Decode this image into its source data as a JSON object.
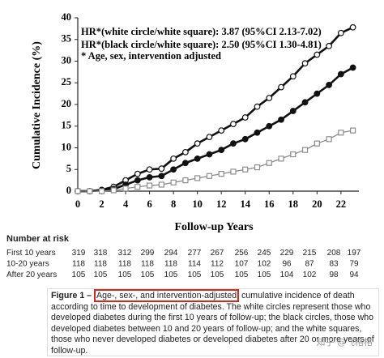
{
  "chart_data": {
    "type": "line",
    "annotations": [
      "HR*(white circle/white square): 3.87 (95%CI 2.13-7.02)",
      "HR*(black circle/white square):  2.50 (95%CI 1.30-4.81)",
      "* Age, sex, intervention adjusted"
    ],
    "x_label": "Follow-up Years",
    "y_label": "Cumulative Incidence (%)",
    "x": [
      0,
      1,
      2,
      3,
      4,
      5,
      6,
      7,
      8,
      9,
      10,
      11,
      12,
      13,
      14,
      15,
      16,
      17,
      18,
      19,
      20,
      21,
      22,
      23
    ],
    "series": [
      {
        "color": "#111111",
        "marker": "circle-open",
        "values": [
          0,
          0,
          0.3,
          1,
          2.5,
          4,
          5,
          5.2,
          7.5,
          9,
          11,
          12.5,
          14,
          15.5,
          17,
          19.5,
          21.5,
          24,
          26.5,
          29.5,
          31.5,
          33.5,
          36.5,
          37.8
        ]
      },
      {
        "color": "#111111",
        "marker": "circle-filled",
        "values": [
          0,
          0,
          0.2,
          0.5,
          1.5,
          2.5,
          3.2,
          3.5,
          5,
          6.5,
          7.5,
          8.5,
          9.5,
          11,
          12,
          13.5,
          15,
          16.5,
          18.5,
          20.5,
          22.5,
          24.5,
          27,
          28.5
        ]
      },
      {
        "color": "#8c8c8c",
        "marker": "square-open",
        "values": [
          0,
          0,
          0,
          0.2,
          0.6,
          1,
          1.3,
          1.5,
          2,
          2.5,
          3,
          3.5,
          4,
          4.5,
          5,
          5.5,
          6.5,
          7.5,
          8.5,
          9.5,
          11,
          12,
          13.5,
          14
        ]
      }
    ],
    "xlim": [
      0,
      23.5
    ],
    "ylim": [
      0,
      40
    ],
    "xticks": [
      0,
      2,
      4,
      6,
      8,
      10,
      12,
      14,
      16,
      18,
      20,
      22
    ],
    "yticks": [
      0,
      5,
      10,
      15,
      20,
      25,
      30,
      35,
      40
    ]
  },
  "risk_table": {
    "title": "Number at risk",
    "rows": [
      {
        "label": "First  10 years",
        "values": [
          319,
          318,
          312,
          299,
          294,
          277,
          267,
          256,
          245,
          229,
          215,
          208,
          197
        ]
      },
      {
        "label": "10-20 years",
        "values": [
          118,
          118,
          118,
          118,
          118,
          114,
          112,
          107,
          102,
          96,
          87,
          83,
          79
        ]
      },
      {
        "label": "After 20 years",
        "values": [
          105,
          105,
          105,
          105,
          105,
          105,
          105,
          105,
          105,
          104,
          102,
          98,
          94
        ]
      }
    ]
  },
  "caption": {
    "label": "Figure 1 –",
    "highlight": "Age-, sex-, and intervention-adjusted",
    "text": "cumulative incidence of death according to time to development of diabetes. The white circles represent those who developed diabetes during the first 10 years of follow-up; the black circles, those who developed diabetes between 10 and 20 years of follow-up; and the white squares, those who never developed diabetes or developed diabetes after 20 or more years of follow-up."
  },
  "watermark": "知乎 @飞格格"
}
